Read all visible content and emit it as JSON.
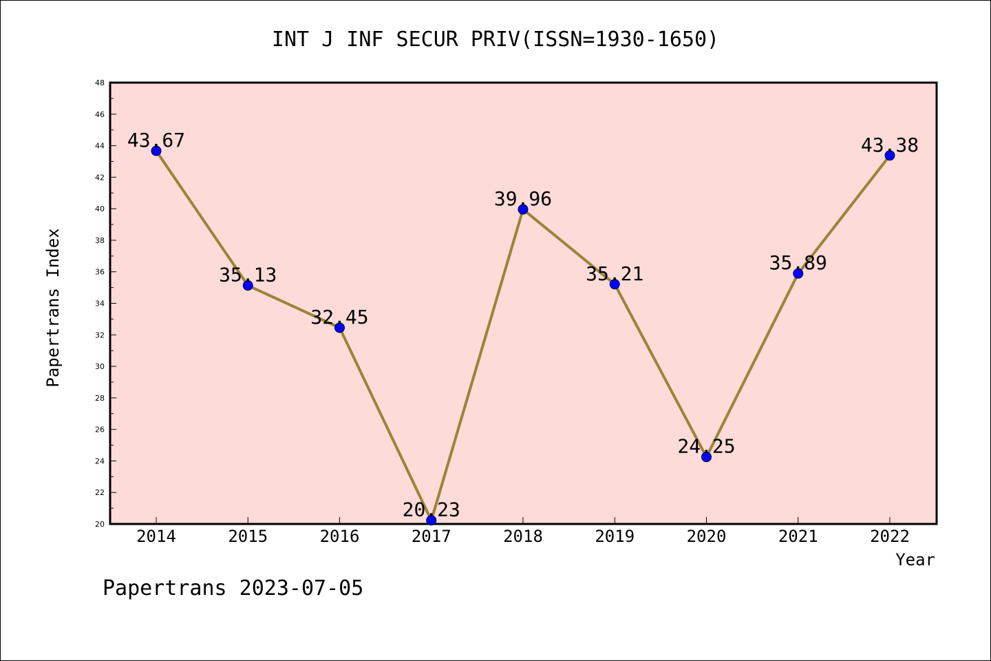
{
  "chart_data": {
    "type": "line",
    "title": "INT J INF SECUR PRIV(ISSN=1930-1650)",
    "xlabel": "Year",
    "ylabel": "Papertrans Index",
    "categories": [
      "2014",
      "2015",
      "2016",
      "2017",
      "2018",
      "2019",
      "2020",
      "2021",
      "2022"
    ],
    "series": [
      {
        "values": [
          43.67,
          35.13,
          32.45,
          20.23,
          39.96,
          35.21,
          24.25,
          35.89,
          43.38
        ],
        "data_labels": [
          "43.67",
          "35.13",
          "32.45",
          "20.23",
          "39.96",
          "35.21",
          "24.25",
          "35.89",
          "43.38"
        ]
      }
    ],
    "ylim": [
      20,
      48
    ],
    "yticks": [
      "20",
      "22",
      "24",
      "26",
      "28",
      "30",
      "32",
      "34",
      "36",
      "38",
      "40",
      "42",
      "44",
      "46",
      "48"
    ],
    "grid": false,
    "legend": "none",
    "footer": "Papertrans 2023-07-05"
  },
  "colors": {
    "plot_background": "#fddbd8",
    "line": "#9a8439",
    "marker": "#0000ff",
    "text": "#000000"
  }
}
